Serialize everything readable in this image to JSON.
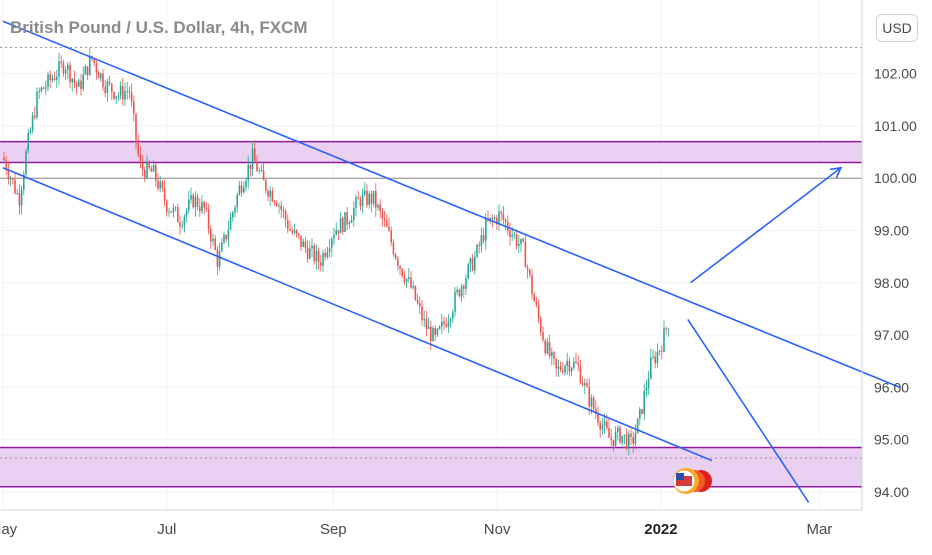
{
  "header": {
    "title": "British Pound / U.S. Dollar, 4h, FXCM",
    "currency": "USD"
  },
  "chart_data": {
    "type": "candlestick",
    "title": "British Pound / U.S. Dollar, 4h, FXCM",
    "currency": "USD",
    "y_ticks": [
      "94.00",
      "95.00",
      "96.00",
      "97.00",
      "98.00",
      "99.00",
      "100.00",
      "101.00",
      "102.00"
    ],
    "ylim": [
      93.8,
      103.2
    ],
    "x_ticks": [
      "May",
      "Jul",
      "Sep",
      "Nov",
      "2022",
      "Mar"
    ],
    "x_tick_dates": [
      "2021-05-01",
      "2021-07-01",
      "2021-09-01",
      "2021-11-01",
      "2022-01-01",
      "2022-03-01"
    ],
    "xlim": [
      "2021-05-01",
      "2022-03-31"
    ],
    "grid": true,
    "price_path": [
      [
        "2021-05-01",
        100.4
      ],
      [
        "2021-05-04",
        100.0
      ],
      [
        "2021-05-07",
        99.6
      ],
      [
        "2021-05-10",
        100.6
      ],
      [
        "2021-05-14",
        101.6
      ],
      [
        "2021-05-19",
        101.9
      ],
      [
        "2021-05-24",
        102.2
      ],
      [
        "2021-05-29",
        101.7
      ],
      [
        "2021-06-03",
        102.3
      ],
      [
        "2021-06-08",
        101.8
      ],
      [
        "2021-06-13",
        101.6
      ],
      [
        "2021-06-17",
        101.7
      ],
      [
        "2021-06-21",
        100.2
      ],
      [
        "2021-06-26",
        100.1
      ],
      [
        "2021-07-01",
        99.5
      ],
      [
        "2021-07-06",
        99.2
      ],
      [
        "2021-07-11",
        99.6
      ],
      [
        "2021-07-15",
        99.4
      ],
      [
        "2021-07-20",
        98.4
      ],
      [
        "2021-07-23",
        98.9
      ],
      [
        "2021-07-28",
        99.8
      ],
      [
        "2021-08-02",
        100.4
      ],
      [
        "2021-08-06",
        99.9
      ],
      [
        "2021-08-11",
        99.6
      ],
      [
        "2021-08-16",
        99.0
      ],
      [
        "2021-08-21",
        98.7
      ],
      [
        "2021-08-27",
        98.4
      ],
      [
        "2021-09-01",
        99.0
      ],
      [
        "2021-09-06",
        99.2
      ],
      [
        "2021-09-11",
        99.6
      ],
      [
        "2021-09-16",
        99.6
      ],
      [
        "2021-09-21",
        99.0
      ],
      [
        "2021-09-26",
        98.3
      ],
      [
        "2021-09-30",
        97.9
      ],
      [
        "2021-10-05",
        97.2
      ],
      [
        "2021-10-09",
        96.9
      ],
      [
        "2021-10-14",
        97.4
      ],
      [
        "2021-10-19",
        98.0
      ],
      [
        "2021-10-24",
        98.5
      ],
      [
        "2021-10-28",
        99.1
      ],
      [
        "2021-11-02",
        99.3
      ],
      [
        "2021-11-06",
        99.0
      ],
      [
        "2021-11-11",
        98.6
      ],
      [
        "2021-11-15",
        97.6
      ],
      [
        "2021-11-19",
        96.8
      ],
      [
        "2021-11-23",
        96.3
      ],
      [
        "2021-11-27",
        96.5
      ],
      [
        "2021-12-01",
        96.4
      ],
      [
        "2021-12-05",
        95.8
      ],
      [
        "2021-12-09",
        95.4
      ],
      [
        "2021-12-13",
        95.0
      ],
      [
        "2021-12-17",
        95.1
      ],
      [
        "2021-12-21",
        94.9
      ],
      [
        "2021-12-24",
        95.4
      ],
      [
        "2021-12-28",
        96.4
      ],
      [
        "2022-01-01",
        96.8
      ],
      [
        "2022-01-04",
        97.3
      ]
    ],
    "zones": [
      {
        "name": "upper",
        "low": 100.3,
        "high": 100.7
      },
      {
        "name": "lower",
        "low": 94.1,
        "high": 94.85
      }
    ],
    "reference_lines": [
      {
        "name": "horizontal",
        "value": 100.0
      },
      {
        "name": "dotted-top",
        "value": 102.5
      },
      {
        "name": "dotted-bottom",
        "value": 94.65
      }
    ],
    "channel": [
      {
        "name": "upper-channel",
        "start": [
          "2021-05-01",
          103.0
        ],
        "end": [
          "2022-03-31",
          96.0
        ]
      },
      {
        "name": "lower-channel",
        "start": [
          "2021-05-01",
          100.2
        ],
        "end": [
          "2022-01-20",
          94.6
        ]
      }
    ],
    "scenario_arrows": [
      {
        "name": "bullish-arrow",
        "start": [
          "2022-01-12",
          98.0
        ],
        "end": [
          "2022-03-09",
          100.2
        ]
      },
      {
        "name": "bearish-arrow",
        "start": [
          "2022-01-11",
          97.3
        ],
        "end": [
          "2022-02-25",
          93.8
        ]
      }
    ],
    "colors": {
      "up": "#26a69a",
      "down": "#ef5350",
      "channel": "#2962ff",
      "zone_fill": "#e6c8ee",
      "zone_border": "#8e1a9e",
      "grid": "#f0f3fa"
    }
  }
}
